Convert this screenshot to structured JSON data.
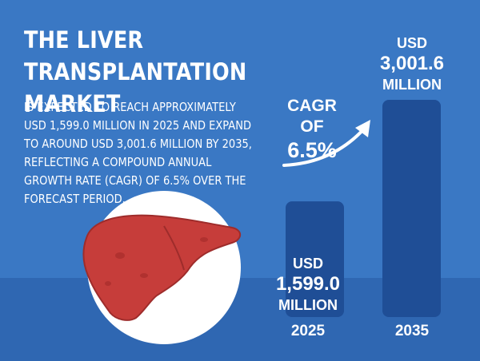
{
  "title": "THE LIVER TRANSPLANTATION MARKET",
  "description": "IS EXPECTED TO REACH APPROXIMATELY USD 1,599.0 MILLION IN 2025 AND EXPAND TO AROUND USD 3,001.6 MILLION BY 2035, REFLECTING A COMPOUND ANNUAL GROWTH RATE (CAGR) OF 6.5% OVER THE FORECAST PERIOD.",
  "cagr": {
    "label": "CAGR OF",
    "value": "6.5%"
  },
  "bars": [
    {
      "year": "2025",
      "currency": "USD",
      "value_text": "1,599.0",
      "unit": "MILLION"
    },
    {
      "year": "2035",
      "currency": "USD",
      "value_text": "3,001.6",
      "unit": "MILLION"
    }
  ],
  "colors": {
    "background": "#3a78c4",
    "floor": "#2f67b2",
    "bar": "#1f4e96",
    "liver": "#c63d3a",
    "circle": "#ffffff"
  },
  "chart_data": {
    "type": "bar",
    "categories": [
      "2025",
      "2035"
    ],
    "values": [
      1599.0,
      3001.6
    ],
    "ylabel": "USD Million",
    "ylim": [
      0,
      3001.6
    ],
    "title": "THE LIVER TRANSPLANTATION MARKET"
  }
}
